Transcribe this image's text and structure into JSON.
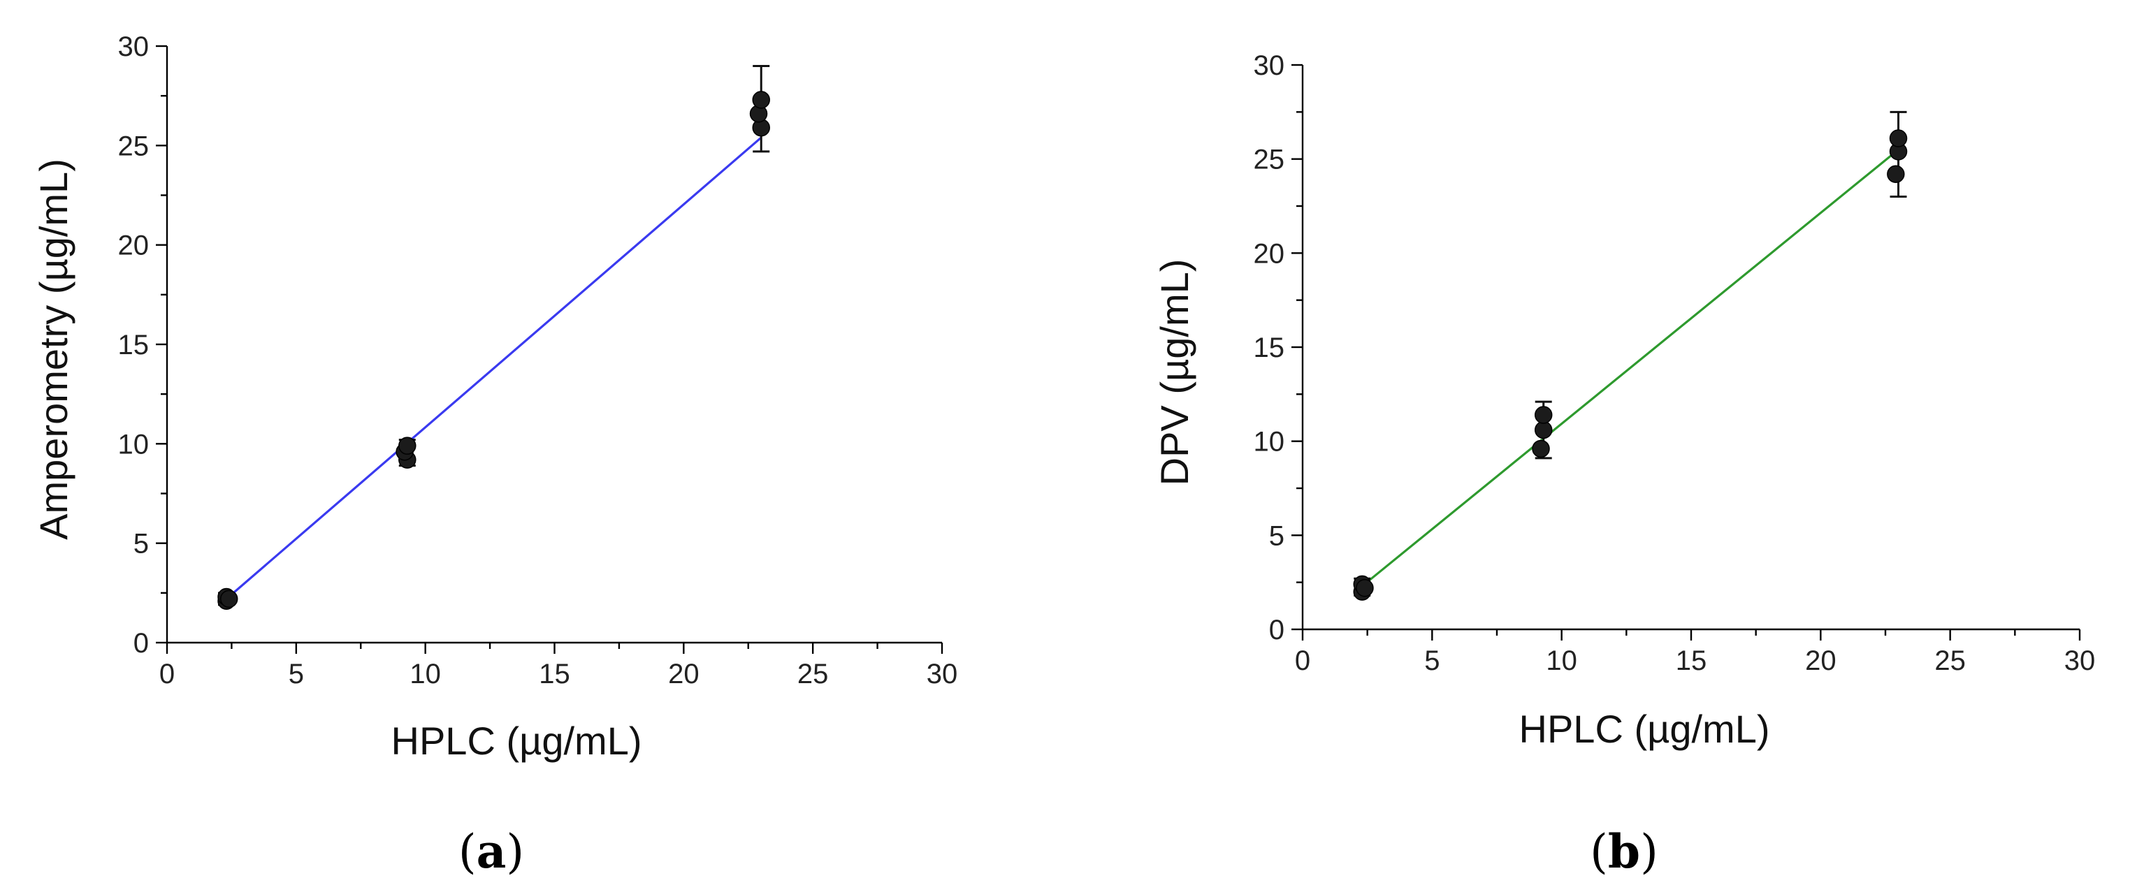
{
  "chart_data": [
    {
      "type": "scatter",
      "panel_label": {
        "open": "(",
        "letter": "a",
        "close": ")"
      },
      "xlabel": "HPLC (µg/mL)",
      "ylabel": "Amperometry (µg/mL)",
      "xlim": [
        0,
        30
      ],
      "ylim": [
        0,
        30
      ],
      "xticks": [
        "0",
        "5",
        "10",
        "15",
        "20",
        "25",
        "30"
      ],
      "yticks": [
        "0",
        "5",
        "10",
        "15",
        "20",
        "25",
        "30"
      ],
      "grid": false,
      "colors": {
        "fit": "#3a3af0",
        "points": "#1b1b1b"
      },
      "points": [
        {
          "x": 2.3,
          "y": 2.1
        },
        {
          "x": 2.3,
          "y": 2.3
        },
        {
          "x": 2.4,
          "y": 2.2
        },
        {
          "x": 9.3,
          "y": 9.2
        },
        {
          "x": 9.2,
          "y": 9.6
        },
        {
          "x": 9.3,
          "y": 9.9
        },
        {
          "x": 23.0,
          "y": 25.9
        },
        {
          "x": 22.9,
          "y": 26.6
        },
        {
          "x": 23.0,
          "y": 27.3
        }
      ],
      "error_bars": [
        {
          "x": 2.3,
          "low": 1.9,
          "high": 2.5
        },
        {
          "x": 9.3,
          "low": 8.9,
          "high": 10.2
        },
        {
          "x": 23.0,
          "low": 24.7,
          "high": 29.0
        }
      ],
      "fit_line": {
        "x": [
          2.3,
          23.0
        ],
        "y": [
          2.2,
          25.4
        ]
      }
    },
    {
      "type": "scatter",
      "panel_label": {
        "open": "(",
        "letter": "b",
        "close": ")"
      },
      "xlabel": "HPLC (µg/mL)",
      "ylabel": "DPV (µg/mL)",
      "xlim": [
        0,
        30
      ],
      "ylim": [
        0,
        30
      ],
      "xticks": [
        "0",
        "5",
        "10",
        "15",
        "20",
        "25",
        "30"
      ],
      "yticks": [
        "0",
        "5",
        "10",
        "15",
        "20",
        "25",
        "30"
      ],
      "grid": false,
      "colors": {
        "fit": "#2e9a2e",
        "points": "#1b1b1b"
      },
      "points": [
        {
          "x": 2.3,
          "y": 2.0
        },
        {
          "x": 2.3,
          "y": 2.4
        },
        {
          "x": 2.4,
          "y": 2.2
        },
        {
          "x": 9.2,
          "y": 9.6
        },
        {
          "x": 9.3,
          "y": 10.6
        },
        {
          "x": 9.3,
          "y": 11.4
        },
        {
          "x": 22.9,
          "y": 24.2
        },
        {
          "x": 23.0,
          "y": 25.4
        },
        {
          "x": 23.0,
          "y": 26.1
        }
      ],
      "error_bars": [
        {
          "x": 2.3,
          "low": 1.8,
          "high": 2.7
        },
        {
          "x": 9.3,
          "low": 9.1,
          "high": 12.1
        },
        {
          "x": 23.0,
          "low": 23.0,
          "high": 27.5
        }
      ],
      "fit_line": {
        "x": [
          2.3,
          23.0
        ],
        "y": [
          2.3,
          25.5
        ]
      }
    }
  ]
}
